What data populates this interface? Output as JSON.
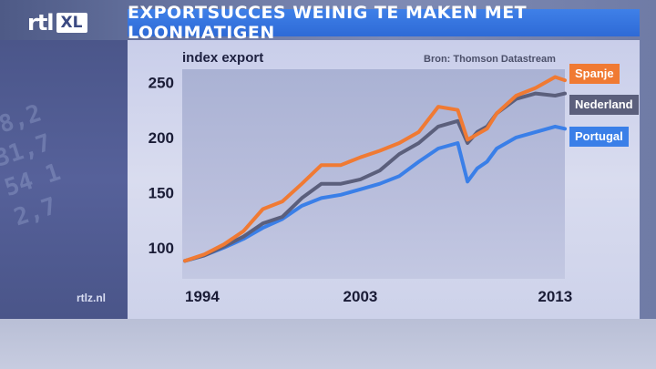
{
  "brand": {
    "logo_rtl": "rtl",
    "logo_xl": "XL",
    "site": "rtlz.nl"
  },
  "header": {
    "title": "EXPORTSUCCES WEINIG TE MAKEN MET LOONMATIGEN"
  },
  "colors": {
    "title_bar": "#2f6ad8",
    "spanje": "#f07a33",
    "nederland": "#5b5f7c",
    "portugal": "#3a7fe8"
  },
  "chart_data": {
    "type": "line",
    "ylabel": "index export",
    "source": "Bron: Thomson Datastream",
    "x_ticks": [
      "1994",
      "2003",
      "2013"
    ],
    "y_ticks": [
      100,
      150,
      200,
      250
    ],
    "ylim": [
      80,
      262
    ],
    "xlim": [
      1994,
      2013.5
    ],
    "grid": false,
    "legend_position": "right",
    "x": [
      1994,
      1995,
      1996,
      1997,
      1998,
      1999,
      2000,
      2001,
      2002,
      2003,
      2004,
      2005,
      2006,
      2007,
      2008,
      2008.5,
      2009,
      2009.5,
      2010,
      2011,
      2012,
      2013,
      2013.5
    ],
    "series": [
      {
        "name": "Spanje",
        "color": "#f07a33",
        "values": [
          88,
          94,
          103,
          115,
          135,
          142,
          158,
          175,
          175,
          182,
          188,
          195,
          205,
          228,
          225,
          198,
          203,
          208,
          222,
          238,
          245,
          255,
          252
        ]
      },
      {
        "name": "Nederland",
        "color": "#5b5f7c",
        "values": [
          88,
          93,
          101,
          110,
          122,
          128,
          145,
          158,
          158,
          162,
          170,
          185,
          195,
          210,
          215,
          195,
          205,
          210,
          222,
          235,
          240,
          238,
          240
        ]
      },
      {
        "name": "Portugal",
        "color": "#3a7fe8",
        "values": [
          88,
          93,
          100,
          108,
          118,
          126,
          138,
          145,
          148,
          153,
          158,
          165,
          178,
          190,
          195,
          160,
          172,
          178,
          190,
          200,
          205,
          210,
          208
        ]
      }
    ]
  }
}
